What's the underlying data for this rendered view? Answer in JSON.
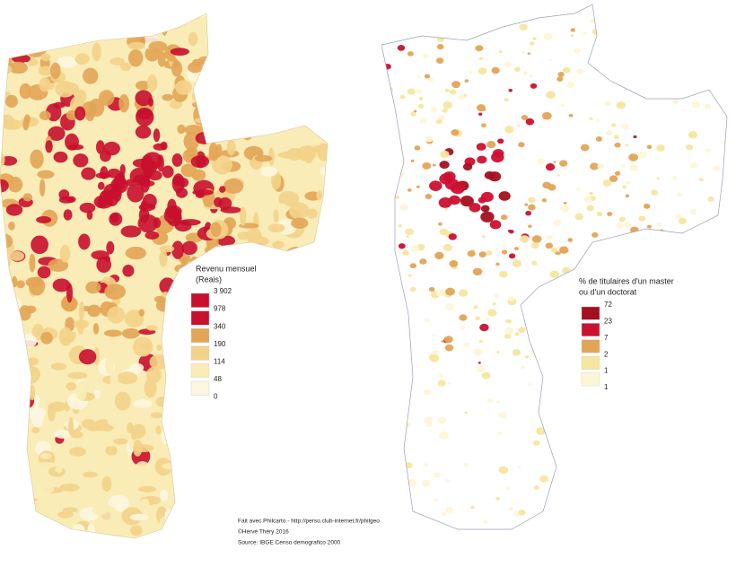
{
  "maps": [
    {
      "legend": {
        "title": [
          "Revenu mensuel",
          "(Reais)"
        ],
        "breaks": [
          "3 902",
          "978",
          "340",
          "190",
          "114",
          "48",
          "0"
        ],
        "colors": [
          "#c8102e",
          "#c8102e",
          "#e2a556",
          "#f3d38a",
          "#faecb6",
          "#fdf7e0"
        ]
      }
    },
    {
      "legend": {
        "title": [
          "% de titulaires d'un master",
          "ou d'un doctorat"
        ],
        "breaks": [
          "72",
          "23",
          "7",
          "2",
          "1",
          "1"
        ],
        "colors": [
          "#a3101f",
          "#cc1030",
          "#e2a556",
          "#f7e6a0",
          "#fdf6d6"
        ]
      }
    }
  ],
  "credits": [
    "Fait avec Philcarto - http://perso.club-internet.fr/philgeo",
    "©Hervé Théry 2016",
    "Source: IBGE Censo demografico  2000"
  ]
}
